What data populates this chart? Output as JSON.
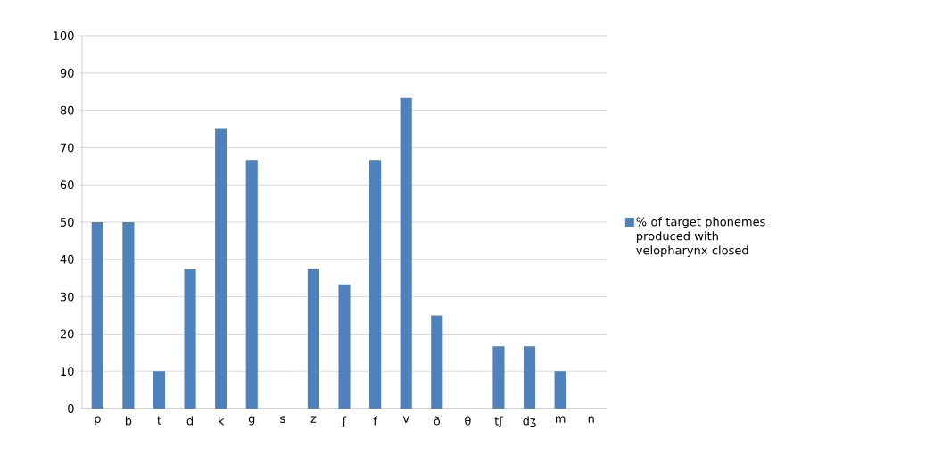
{
  "chart_data": {
    "type": "bar",
    "categories": [
      "p",
      "b",
      "t",
      "d",
      "k",
      "g",
      "s",
      "z",
      "ʃ",
      "f",
      "v",
      "ð",
      "θ",
      "tʃ",
      "dʒ",
      "m",
      "n"
    ],
    "series": [
      {
        "name": "% of target phonemes produced with velopharynx closed",
        "color": "#4f81bd",
        "values": [
          50,
          50,
          10,
          37.5,
          75,
          66.7,
          0,
          37.5,
          33.3,
          66.7,
          83.3,
          25,
          0,
          16.7,
          16.7,
          10,
          0
        ]
      }
    ],
    "ylim": [
      0,
      100
    ],
    "yticks": [
      0,
      10,
      20,
      30,
      40,
      50,
      60,
      70,
      80,
      90,
      100
    ],
    "grid": "y",
    "legend": "right"
  }
}
